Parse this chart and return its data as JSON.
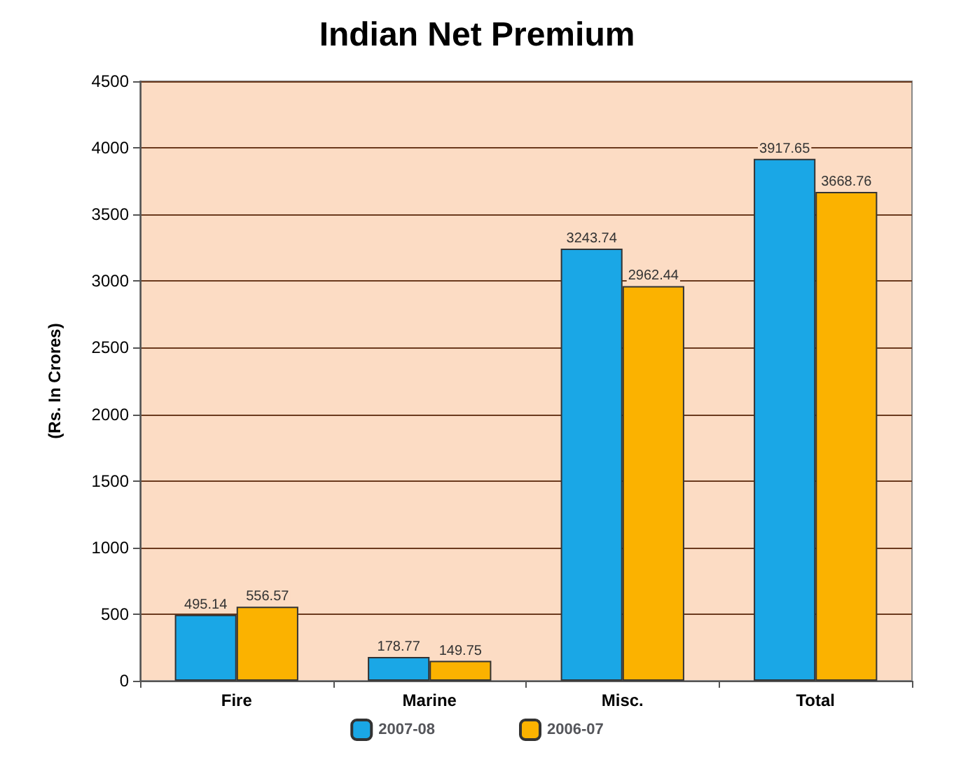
{
  "chart_data": {
    "type": "bar",
    "title": "Indian Net Premium",
    "ylabel": "(Rs. In Crores)",
    "categories": [
      "Fire",
      "Marine",
      "Misc.",
      "Total"
    ],
    "series": [
      {
        "name": "2007-08",
        "color": "#1aa7e6",
        "values": [
          495.14,
          178.77,
          3243.74,
          3917.65
        ]
      },
      {
        "name": "2006-07",
        "color": "#fbb200",
        "values": [
          556.57,
          149.75,
          2962.44,
          3668.76
        ]
      }
    ],
    "ylim": [
      0,
      4500
    ],
    "yticks": [
      0,
      500,
      1000,
      1500,
      2000,
      2500,
      3000,
      3500,
      4000,
      4500
    ],
    "grid": "y",
    "legend": "bottom",
    "data_labels": true
  }
}
